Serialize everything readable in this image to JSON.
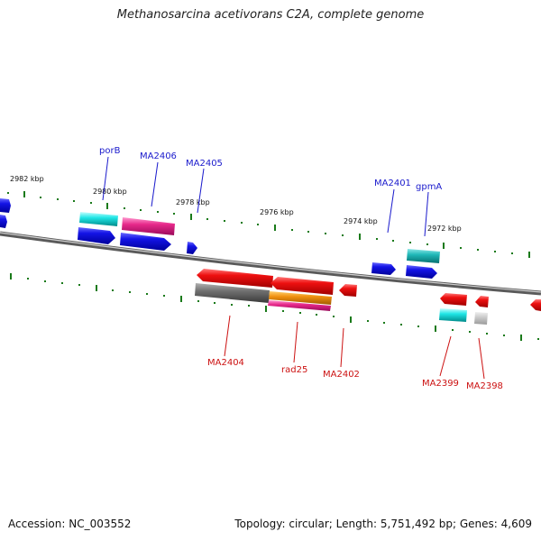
{
  "title": "Methanosarcina acetivorans C2A, complete genome",
  "footer": {
    "accession": "Accession: NC_003552",
    "summary": "Topology: circular; Length: 5,751,492 bp; Genes: 4,609"
  },
  "colors": {
    "forward_label": "#1a1acc",
    "reverse_label": "#cc1111",
    "tick": "#1a7a1a",
    "backbone": "#7a7a7a"
  },
  "kbp_labels": [
    "2982 kbp",
    "2980 kbp",
    "2978 kbp",
    "2976 kbp",
    "2974 kbp",
    "2972 kbp"
  ],
  "gene_labels_forward": [
    "porB",
    "MA2406",
    "MA2405",
    "MA2401",
    "gpmA"
  ],
  "gene_labels_reverse": [
    "MA2404",
    "rad25",
    "MA2402",
    "MA2399",
    "MA2398"
  ]
}
